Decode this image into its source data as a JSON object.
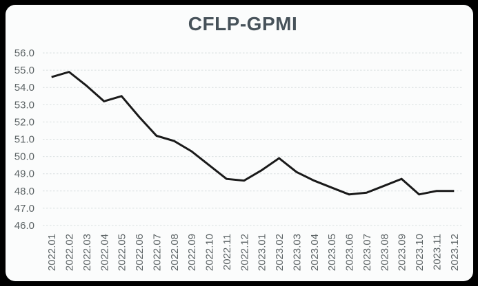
{
  "frame": {
    "background_color": "#000000",
    "card_color": "#fbfcfc"
  },
  "chart_data": {
    "type": "line",
    "title": "CFLP-GPMI",
    "categories": [
      "2022.01",
      "2022.02",
      "2022.03",
      "2022.04",
      "2022.05",
      "2022.06",
      "2022.07",
      "2022.08",
      "2022.09",
      "2022.10",
      "2022.11",
      "2022.12",
      "2023.01",
      "2023.02",
      "2023.03",
      "2023.04",
      "2023.05",
      "2023.06",
      "2023.07",
      "2023.08",
      "2023.09",
      "2023.10",
      "2023.11",
      "2023.12"
    ],
    "series": [
      {
        "name": "CFLP-GPMI",
        "values": [
          54.6,
          54.9,
          54.1,
          53.2,
          53.5,
          52.3,
          51.2,
          50.9,
          50.3,
          49.5,
          48.7,
          48.6,
          49.2,
          49.9,
          49.1,
          48.6,
          48.2,
          47.8,
          47.9,
          48.3,
          48.7,
          47.8,
          48.0,
          48.0
        ]
      }
    ],
    "xlabel": "",
    "ylabel": "",
    "ylim": [
      46.0,
      56.0
    ],
    "ytick_step": 1.0,
    "ytick_labels": [
      "56.0",
      "55.0",
      "54.0",
      "53.0",
      "52.0",
      "51.0",
      "50.0",
      "49.0",
      "48.0",
      "47.0",
      "46.0"
    ],
    "grid": "horizontal dashed",
    "legend_position": "none",
    "colors": {
      "line": "#1a1a1a",
      "grid": "#d9dfe0",
      "title": "#47525a",
      "tick_labels": "#5d6466"
    }
  }
}
